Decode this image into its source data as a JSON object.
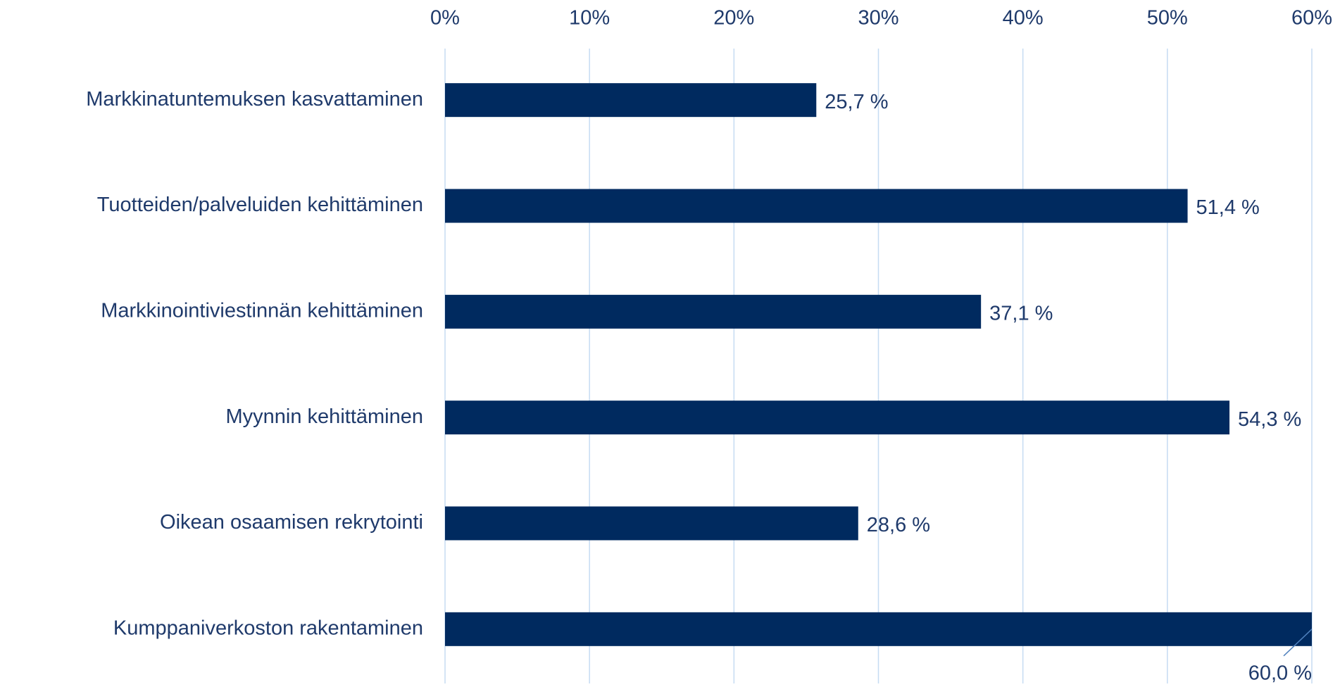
{
  "chart_data": {
    "type": "hbar",
    "categories": [
      "Markkinatuntemuksen kasvattaminen",
      "Tuotteiden/palveluiden kehittäminen",
      "Markkinointiviestinnän kehittäminen",
      "Myynnin kehittäminen",
      "Oikean osaamisen rekrytointi",
      "Kumppaniverkoston rakentaminen"
    ],
    "values": [
      25.7,
      51.4,
      37.1,
      54.3,
      28.6,
      60.0
    ],
    "value_labels": [
      "25,7 %",
      "51,4 %",
      "37,1 %",
      "54,3 %",
      "28,6 %",
      "60,0 %"
    ],
    "color": "#002a5f",
    "xlim": [
      0,
      60
    ],
    "xticks": [
      {
        "value": 0,
        "label": "0%"
      },
      {
        "value": 10,
        "label": "10%"
      },
      {
        "value": 20,
        "label": "20%"
      },
      {
        "value": 30,
        "label": "30%"
      },
      {
        "value": 40,
        "label": "40%"
      },
      {
        "value": 50,
        "label": "50%"
      },
      {
        "value": 60,
        "label": "60%"
      }
    ],
    "grid": true
  }
}
